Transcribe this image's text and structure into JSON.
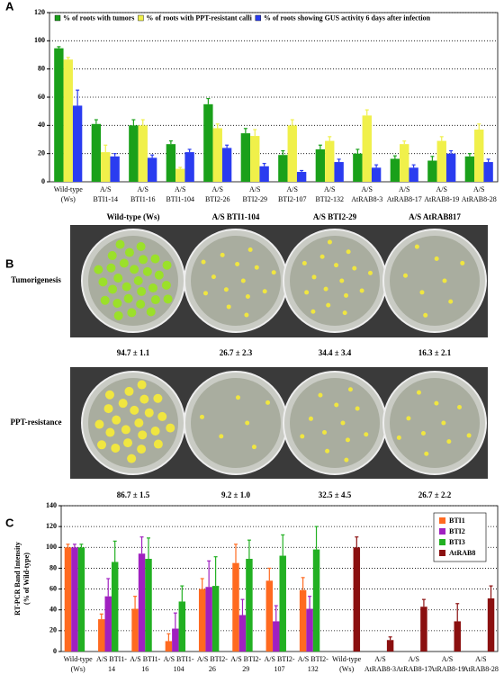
{
  "panel_labels": [
    "A",
    "B",
    "C"
  ],
  "chart_data": [
    {
      "type": "bar",
      "legend": [
        "% of roots with tumors",
        "% of roots with PPT-resistant calli",
        "% of roots showing GUS activity 6 days after infection"
      ],
      "categories": [
        [
          "Wild-type",
          "(Ws)"
        ],
        [
          "A/S",
          "BTI1-14"
        ],
        [
          "A/S",
          "BTI1-16"
        ],
        [
          "A/S",
          "BTI1-104"
        ],
        [
          "A/S",
          "BTI2-26"
        ],
        [
          "A/S",
          "BTI2-29"
        ],
        [
          "A/S",
          "BTI2-107"
        ],
        [
          "A/S",
          "BTI2-132"
        ],
        [
          "A/S",
          "AtRAB8-3"
        ],
        [
          "A/S",
          "AtRAB8-17"
        ],
        [
          "A/S",
          "AtRAB8-19"
        ],
        [
          "A/S",
          "AtRAB8-28"
        ]
      ],
      "series": [
        {
          "name": "% of roots with tumors",
          "color": "#1aa01a",
          "values": [
            94.7,
            41,
            40,
            26.7,
            55,
            34.4,
            19,
            23,
            20,
            16.3,
            15,
            18
          ],
          "errors": [
            1.1,
            3,
            4,
            2.3,
            4,
            3.4,
            3,
            3,
            3,
            2.1,
            3,
            2
          ]
        },
        {
          "name": "% of roots with PPT-resistant calli",
          "color": "#f0f04a",
          "values": [
            86.7,
            21,
            40,
            9.2,
            38,
            32.5,
            40,
            29,
            47,
            26.7,
            29,
            37
          ],
          "errors": [
            1.5,
            5,
            4,
            1,
            3,
            4.5,
            4,
            3,
            4,
            2.2,
            3,
            4
          ]
        },
        {
          "name": "% of roots showing GUS activity 6 days after infection",
          "color": "#2a3cf0",
          "values": [
            54,
            18,
            17,
            21,
            24,
            11,
            7,
            14,
            10,
            10,
            20,
            14
          ],
          "errors": [
            11,
            2,
            2,
            2,
            2,
            2,
            1,
            2,
            2,
            2,
            2,
            2
          ]
        }
      ],
      "ylim": [
        0,
        120
      ],
      "yticks": [
        0,
        20,
        40,
        60,
        80,
        100,
        120
      ],
      "grid": true
    },
    {
      "type": "bar",
      "ylabel": [
        "RT-PCR Band Intensity",
        "(% of Wild-type)"
      ],
      "categories": [
        [
          "Wild-type",
          "(Ws)"
        ],
        [
          "A/S BTI1-",
          "14"
        ],
        [
          "A/S BTI1-",
          "16"
        ],
        [
          "A/S BTI1-",
          "104"
        ],
        [
          "A/S BTI2-",
          "26"
        ],
        [
          "A/S BTI2-",
          "29"
        ],
        [
          "A/S BTI2-",
          "107"
        ],
        [
          "A/S BTI2-",
          "132"
        ],
        [
          "Wild-type",
          "(Ws)"
        ],
        [
          "A/S",
          "AtRAB8-3"
        ],
        [
          "A/S",
          "AtRAB8-17"
        ],
        [
          "A/S",
          "AtRAB8-19"
        ],
        [
          "A/S",
          "AtRAB8-28"
        ]
      ],
      "series": [
        {
          "name": "BTI1",
          "color": "#ff6a20",
          "values": [
            100,
            31,
            41,
            10,
            60,
            85,
            68,
            59,
            null,
            null,
            null,
            null,
            null
          ],
          "errors": [
            3,
            5,
            12,
            7,
            10,
            18,
            12,
            12,
            null,
            null,
            null,
            null,
            null
          ]
        },
        {
          "name": "BTI2",
          "color": "#a020c0",
          "values": [
            100,
            53,
            94,
            22,
            62,
            35,
            29,
            41,
            null,
            null,
            null,
            null,
            null
          ],
          "errors": [
            3,
            17,
            16,
            15,
            25,
            15,
            15,
            12,
            null,
            null,
            null,
            null,
            null
          ]
        },
        {
          "name": "BTI3",
          "color": "#22b022",
          "values": [
            100,
            86,
            89,
            48,
            63,
            89,
            92,
            98,
            null,
            null,
            null,
            null,
            null
          ],
          "errors": [
            3,
            20,
            20,
            15,
            28,
            18,
            20,
            22,
            null,
            null,
            null,
            null,
            null
          ]
        },
        {
          "name": "AtRAB8",
          "color": "#8b1010",
          "values": [
            null,
            null,
            null,
            null,
            null,
            null,
            null,
            null,
            100,
            11,
            43,
            29,
            51
          ],
          "errors": [
            null,
            null,
            null,
            null,
            null,
            null,
            null,
            null,
            10,
            3,
            7,
            17,
            12
          ]
        }
      ],
      "ylim": [
        0,
        140
      ],
      "yticks": [
        0,
        20,
        40,
        60,
        80,
        100,
        120,
        140
      ],
      "grid": true
    }
  ],
  "panel_b": {
    "columns": [
      "Wild-type (Ws)",
      "A/S BTI1-104",
      "A/S BTI2-29",
      "A/S AtRAB817"
    ],
    "rows": [
      {
        "label": "Tumorigenesis",
        "values": [
          "94.7 ± 1.1",
          "26.7 ± 2.3",
          "34.4 ± 3.4",
          "16.3 ± 2.1"
        ]
      },
      {
        "label": "PPT-resistance",
        "values": [
          "86.7 ± 1.5",
          "9.2 ± 1.0",
          "32.5 ± 4.5",
          "26.7 ± 2.2"
        ]
      }
    ]
  }
}
